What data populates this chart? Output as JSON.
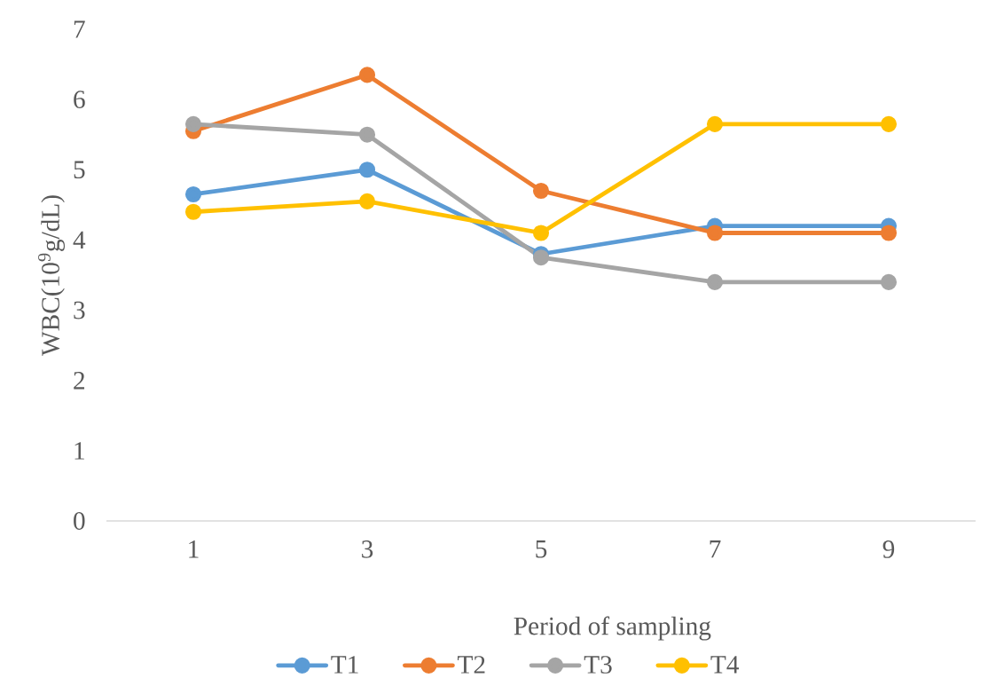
{
  "chart_data": {
    "type": "line",
    "xlabel": "Period of sampling",
    "ylabel": "WBC(10$^{9}$g/dL)",
    "categories": [
      "1",
      "3",
      "5",
      "7",
      "9"
    ],
    "ylim": [
      0,
      7
    ],
    "yticks": [
      0,
      1,
      2,
      3,
      4,
      5,
      6,
      7
    ],
    "legend": "bottom",
    "marker": "circle",
    "line_style": "solid",
    "series": [
      {
        "name": "T1",
        "color": "#5b9bd5",
        "values": [
          4.65,
          5.0,
          3.8,
          4.2,
          4.2
        ]
      },
      {
        "name": "T2",
        "color": "#ed7d31",
        "values": [
          5.55,
          6.35,
          4.7,
          4.1,
          4.1
        ]
      },
      {
        "name": "T3",
        "color": "#a5a5a5",
        "values": [
          5.65,
          5.5,
          3.75,
          3.4,
          3.4
        ]
      },
      {
        "name": "T4",
        "color": "#ffc000",
        "values": [
          4.4,
          4.55,
          4.1,
          5.65,
          5.65
        ]
      }
    ]
  }
}
